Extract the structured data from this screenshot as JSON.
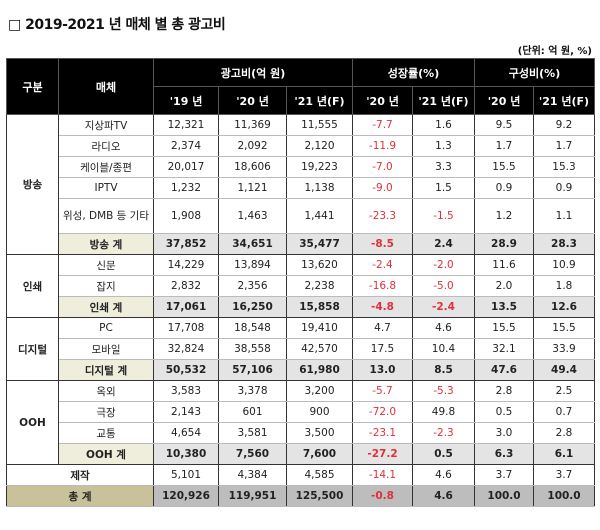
{
  "title": "□ 2019-2021 년 매체 별 총 광고비",
  "unit": "(단위: 억 원, %)",
  "header": {
    "category": "구분",
    "media": "매체",
    "adspend": "광고비(억 원)",
    "growth": "성장률(%)",
    "share": "구성비(%)",
    "sub": [
      "'19 년",
      "'20 년",
      "'21 년(F)",
      "'20 년",
      "'21 년(F)",
      "'20 년",
      "'21 년(F)"
    ]
  },
  "groups": [
    {
      "name": "방송",
      "rows": [
        [
          "지상파TV",
          "12,321",
          "11,369",
          "11,555",
          "-7.7",
          "1.6",
          "9.5",
          "9.2"
        ],
        [
          "라디오",
          "2,374",
          "2,092",
          "2,120",
          "-11.9",
          "1.3",
          "1.7",
          "1.7"
        ],
        [
          "케이블/종편",
          "20,017",
          "18,606",
          "19,223",
          "-7.0",
          "3.3",
          "15.5",
          "15.3"
        ],
        [
          "IPTV",
          "1,232",
          "1,121",
          "1,138",
          "-9.0",
          "1.5",
          "0.9",
          "0.9"
        ],
        [
          "위성, DMB 등 기타",
          "1,908",
          "1,463",
          "1,441",
          "-23.3",
          "-1.5",
          "1.2",
          "1.1"
        ]
      ],
      "total": [
        "방송 계",
        "37,852",
        "34,651",
        "35,477",
        "-8.5",
        "2.4",
        "28.9",
        "28.3"
      ]
    },
    {
      "name": "인쇄",
      "rows": [
        [
          "신문",
          "14,229",
          "13,894",
          "13,620",
          "-2.4",
          "-2.0",
          "11.6",
          "10.9"
        ],
        [
          "잡지",
          "2,832",
          "2,356",
          "2,238",
          "-16.8",
          "-5.0",
          "2.0",
          "1.8"
        ]
      ],
      "total": [
        "인쇄 계",
        "17,061",
        "16,250",
        "15,858",
        "-4.8",
        "-2.4",
        "13.5",
        "12.6"
      ]
    },
    {
      "name": "디지털",
      "rows": [
        [
          "PC",
          "17,708",
          "18,548",
          "19,410",
          "4.7",
          "4.6",
          "15.5",
          "15.5"
        ],
        [
          "모바일",
          "32,824",
          "38,558",
          "42,570",
          "17.5",
          "10.4",
          "32.1",
          "33.9"
        ]
      ],
      "total": [
        "디지털 계",
        "50,532",
        "57,106",
        "61,980",
        "13.0",
        "8.5",
        "47.6",
        "49.4"
      ]
    },
    {
      "name": "OOH",
      "rows": [
        [
          "옥외",
          "3,583",
          "3,378",
          "3,200",
          "-5.7",
          "-5.3",
          "2.8",
          "2.5"
        ],
        [
          "극장",
          "2,143",
          "601",
          "900",
          "-72.0",
          "49.8",
          "0.5",
          "0.7"
        ],
        [
          "교통",
          "4,654",
          "3,581",
          "3,500",
          "-23.1",
          "-2.3",
          "3.0",
          "2.8"
        ]
      ],
      "total": [
        "OOH 계",
        "10,380",
        "7,560",
        "7,600",
        "-27.2",
        "0.5",
        "6.3",
        "6.1"
      ]
    }
  ],
  "production": [
    "제작",
    "5,101",
    "4,384",
    "4,585",
    "-14.1",
    "4.6",
    "3.7",
    "3.7"
  ],
  "grand_total": [
    "총 계",
    "120,926",
    "119,951",
    "125,500",
    "-0.8",
    "4.6",
    "100.0",
    "100.0"
  ]
}
